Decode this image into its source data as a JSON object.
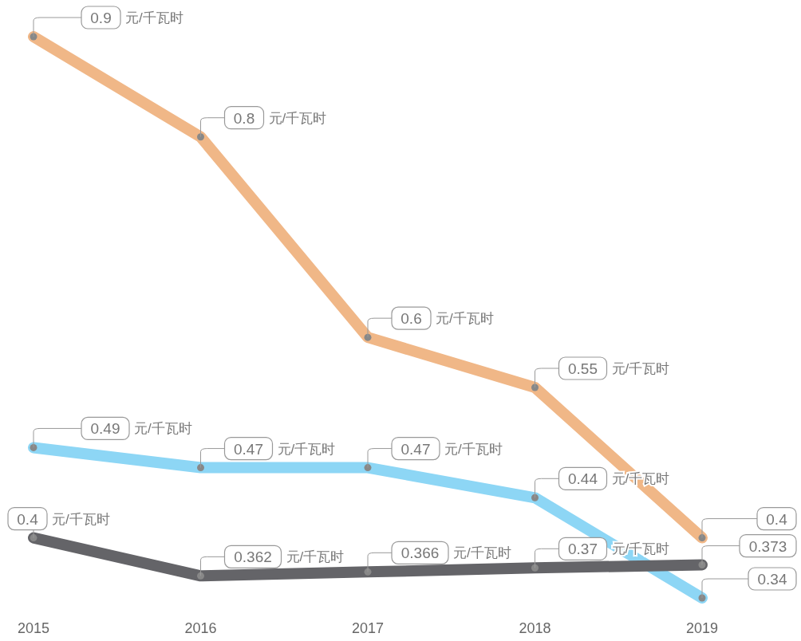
{
  "chart_data": {
    "type": "line",
    "categories": [
      "2015",
      "2016",
      "2017",
      "2018",
      "2019"
    ],
    "data_labels": true,
    "marker": "circle",
    "series": [
      {
        "color": "#f0b787",
        "values": [
          0.9,
          0.8,
          0.6,
          0.55,
          0.4
        ],
        "value_labels": [
          "0.9 元/千瓦时",
          "0.8 元/千瓦时",
          "0.6 元/千瓦时",
          "0.55 元/千瓦时",
          "0.4"
        ]
      },
      {
        "color": "#8dd6f5",
        "values": [
          0.49,
          0.47,
          0.47,
          0.44,
          0.34
        ],
        "value_labels": [
          "0.49 元/千瓦时",
          "0.47 元/千瓦时",
          "0.47 元/千瓦时",
          "0.44 元/千瓦时",
          "0.34"
        ]
      },
      {
        "color": "#646468",
        "values": [
          0.4,
          0.362,
          0.366,
          0.37,
          0.373
        ],
        "value_labels": [
          "0.4 元/千瓦时",
          "0.362 元/千瓦时",
          "0.366 元/千瓦时",
          "0.37 元/千瓦时",
          "0.373"
        ]
      }
    ]
  }
}
